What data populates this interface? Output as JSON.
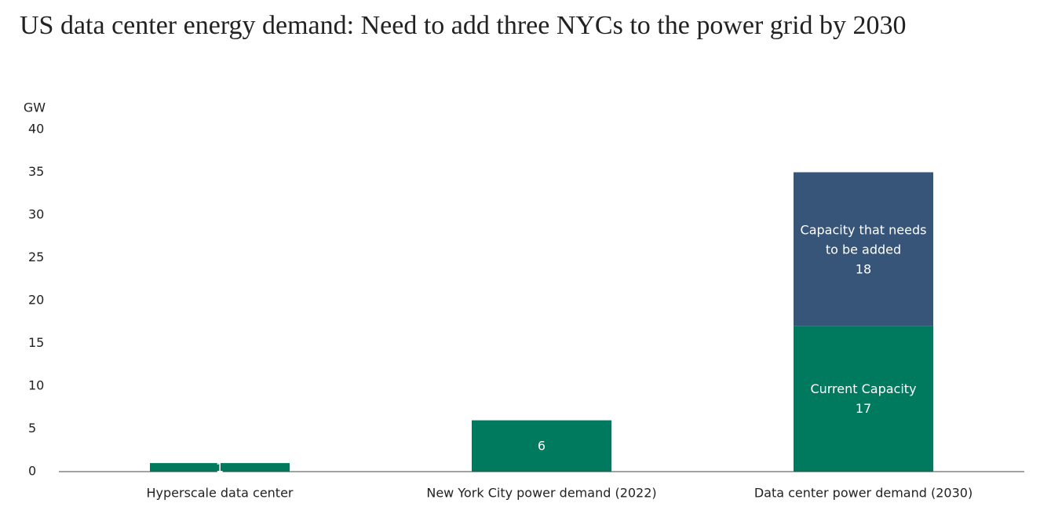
{
  "chart_data": {
    "type": "stacked_bar",
    "title": "US data center energy demand: Need to add three NYCs to the power grid by 2030",
    "y_label": "GW",
    "categories": [
      "Hyperscale data center",
      "New York City power demand (2022)",
      "Data center power demand (2030)"
    ],
    "series": [
      {
        "name": "Current Capacity",
        "color": "#007a5e",
        "values": [
          1,
          6,
          17
        ]
      },
      {
        "name": "Capacity that needs to be added",
        "color": "#365578",
        "values": [
          null,
          null,
          18
        ]
      }
    ],
    "ylim": [
      0,
      40
    ],
    "yticks": [
      0,
      5,
      10,
      15,
      20,
      25,
      30,
      35,
      40
    ],
    "grid": false
  }
}
